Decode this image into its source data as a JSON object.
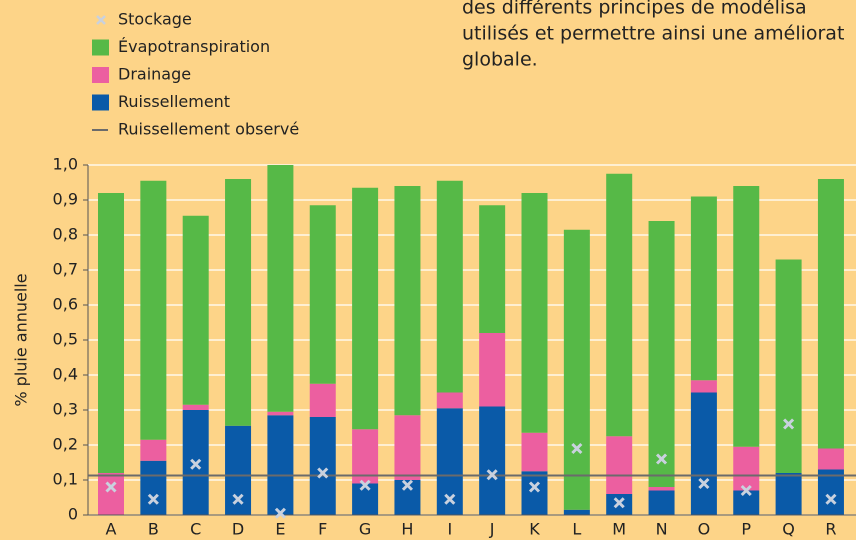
{
  "chart_data": {
    "type": "bar",
    "stacked": true,
    "text_lines": [
      "des différents principes de modélisa",
      "utilisés et permettre ainsi une améliorat",
      "globale."
    ],
    "ylabel": "% pluie annuelle",
    "categories": [
      "A",
      "B",
      "C",
      "D",
      "E",
      "F",
      "G",
      "H",
      "I",
      "J",
      "K",
      "L",
      "M",
      "N",
      "O",
      "P",
      "Q",
      "R"
    ],
    "series": [
      {
        "name": "Stockage",
        "type": "scatter",
        "color": "#c9d1de",
        "values": [
          0.08,
          0.045,
          0.145,
          0.045,
          0.005,
          0.12,
          0.085,
          0.085,
          0.045,
          0.115,
          0.08,
          0.19,
          0.035,
          0.16,
          0.09,
          0.07,
          0.26,
          0.045
        ]
      },
      {
        "name": "Évapotranspiration",
        "type": "bar",
        "color": "#56b947",
        "values": [
          0.8,
          0.74,
          0.54,
          0.705,
          0.705,
          0.51,
          0.69,
          0.655,
          0.605,
          0.365,
          0.685,
          0.8,
          0.75,
          0.76,
          0.525,
          0.745,
          0.61,
          0.77
        ]
      },
      {
        "name": "Drainage",
        "type": "bar",
        "color": "#ec5fa0",
        "values": [
          0.12,
          0.06,
          0.015,
          0,
          0.01,
          0.095,
          0.155,
          0.185,
          0.045,
          0.21,
          0.11,
          0,
          0.165,
          0.01,
          0.035,
          0.125,
          0,
          0.06
        ]
      },
      {
        "name": "Ruissellement",
        "type": "bar",
        "color": "#0a5aa8",
        "values": [
          0,
          0.155,
          0.3,
          0.255,
          0.285,
          0.28,
          0.09,
          0.1,
          0.305,
          0.31,
          0.125,
          0.015,
          0.06,
          0.07,
          0.35,
          0.07,
          0.12,
          0.13
        ]
      },
      {
        "name": "Ruissellement observé",
        "type": "hline",
        "color": "#6b6b6b",
        "value": 0.113
      }
    ],
    "ylim": [
      0,
      1.0
    ],
    "yticks": [
      0,
      {
        "value": 0.1,
        "label": "0,1"
      },
      {
        "value": 0.2,
        "label": "0,2"
      },
      {
        "value": 0.3,
        "label": "0,3"
      },
      {
        "value": 0.4,
        "label": "0,4"
      },
      {
        "value": 0.5,
        "label": "0,5"
      },
      {
        "value": 0.6,
        "label": "0,6"
      },
      {
        "value": 0.7,
        "label": "0,7"
      },
      {
        "value": 0.8,
        "label": "0,8"
      },
      {
        "value": 0.9,
        "label": "0,9"
      },
      {
        "value": 1.0,
        "label": "1,0"
      }
    ],
    "grid": true
  }
}
